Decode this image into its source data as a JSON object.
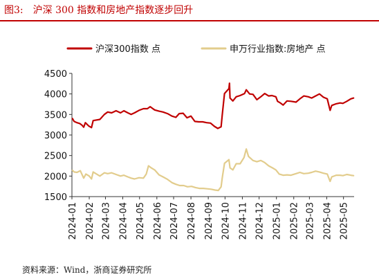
{
  "header": {
    "figure_number": "图3:",
    "title": "沪深 300 指数和房地产指数逐步回升"
  },
  "source": "资料来源：Wind，浙商证券研究所",
  "colors": {
    "series1": "#c00000",
    "series2": "#e2cc8c",
    "title": "#c00000"
  },
  "chart_data": {
    "type": "line",
    "title": "",
    "xlabel": "",
    "ylabel": "",
    "ylim": [
      1500,
      4500
    ],
    "yticks": [
      1500,
      2000,
      2500,
      3000,
      3500,
      4000,
      4500
    ],
    "xlim": [
      "2024-01-01",
      "2025-05-20"
    ],
    "xticks": [
      "2024-01",
      "2024-02",
      "2024-03",
      "2024-04",
      "2024-05",
      "2024-06",
      "2024-07",
      "2024-08",
      "2024-09",
      "2024-10",
      "2024-11",
      "2024-12",
      "2025-01",
      "2025-02",
      "2025-03",
      "2025-04",
      "2025-05"
    ],
    "legend": "top",
    "grid": false,
    "series": [
      {
        "name": "沪深300指数 点",
        "color": "#c00000",
        "points": [
          [
            "2024-01-02",
            3400
          ],
          [
            "2024-01-05",
            3330
          ],
          [
            "2024-01-10",
            3300
          ],
          [
            "2024-01-15",
            3280
          ],
          [
            "2024-01-19",
            3240
          ],
          [
            "2024-01-22",
            3190
          ],
          [
            "2024-01-25",
            3300
          ],
          [
            "2024-01-31",
            3220
          ],
          [
            "2024-02-05",
            3180
          ],
          [
            "2024-02-08",
            3350
          ],
          [
            "2024-02-20",
            3380
          ],
          [
            "2024-02-28",
            3500
          ],
          [
            "2024-03-05",
            3560
          ],
          [
            "2024-03-12",
            3540
          ],
          [
            "2024-03-20",
            3590
          ],
          [
            "2024-03-28",
            3540
          ],
          [
            "2024-04-03",
            3590
          ],
          [
            "2024-04-10",
            3540
          ],
          [
            "2024-04-16",
            3500
          ],
          [
            "2024-04-22",
            3540
          ],
          [
            "2024-04-30",
            3600
          ],
          [
            "2024-05-08",
            3640
          ],
          [
            "2024-05-15",
            3640
          ],
          [
            "2024-05-20",
            3690
          ],
          [
            "2024-05-28",
            3610
          ],
          [
            "2024-06-05",
            3580
          ],
          [
            "2024-06-12",
            3560
          ],
          [
            "2024-06-20",
            3520
          ],
          [
            "2024-06-28",
            3460
          ],
          [
            "2024-07-05",
            3430
          ],
          [
            "2024-07-11",
            3520
          ],
          [
            "2024-07-18",
            3530
          ],
          [
            "2024-07-25",
            3420
          ],
          [
            "2024-08-01",
            3460
          ],
          [
            "2024-08-08",
            3330
          ],
          [
            "2024-08-15",
            3320
          ],
          [
            "2024-08-22",
            3320
          ],
          [
            "2024-08-29",
            3300
          ],
          [
            "2024-09-05",
            3290
          ],
          [
            "2024-09-12",
            3210
          ],
          [
            "2024-09-18",
            3160
          ],
          [
            "2024-09-24",
            3200
          ],
          [
            "2024-09-26",
            3480
          ],
          [
            "2024-09-30",
            4010
          ],
          [
            "2024-10-08",
            4130
          ],
          [
            "2024-10-09",
            4260
          ],
          [
            "2024-10-10",
            3900
          ],
          [
            "2024-10-15",
            3830
          ],
          [
            "2024-10-21",
            3930
          ],
          [
            "2024-10-28",
            3960
          ],
          [
            "2024-11-05",
            4010
          ],
          [
            "2024-11-08",
            4100
          ],
          [
            "2024-11-14",
            4000
          ],
          [
            "2024-11-20",
            3990
          ],
          [
            "2024-11-27",
            3860
          ],
          [
            "2024-12-04",
            3930
          ],
          [
            "2024-12-11",
            4010
          ],
          [
            "2024-12-18",
            3950
          ],
          [
            "2024-12-24",
            3960
          ],
          [
            "2024-12-31",
            3930
          ],
          [
            "2025-01-03",
            3820
          ],
          [
            "2025-01-08",
            3780
          ],
          [
            "2025-01-13",
            3730
          ],
          [
            "2025-01-20",
            3830
          ],
          [
            "2025-01-27",
            3820
          ],
          [
            "2025-02-05",
            3800
          ],
          [
            "2025-02-12",
            3880
          ],
          [
            "2025-02-19",
            3950
          ],
          [
            "2025-02-27",
            3930
          ],
          [
            "2025-03-05",
            3900
          ],
          [
            "2025-03-12",
            3950
          ],
          [
            "2025-03-19",
            4000
          ],
          [
            "2025-03-26",
            3920
          ],
          [
            "2025-04-02",
            3880
          ],
          [
            "2025-04-07",
            3600
          ],
          [
            "2025-04-10",
            3720
          ],
          [
            "2025-04-18",
            3760
          ],
          [
            "2025-04-25",
            3780
          ],
          [
            "2025-04-30",
            3770
          ],
          [
            "2025-05-07",
            3820
          ],
          [
            "2025-05-14",
            3880
          ],
          [
            "2025-05-19",
            3900
          ]
        ]
      },
      {
        "name": "申万行业指数:房地产 点",
        "color": "#e2cc8c",
        "points": [
          [
            "2024-01-02",
            2140
          ],
          [
            "2024-01-05",
            2100
          ],
          [
            "2024-01-10",
            2090
          ],
          [
            "2024-01-16",
            2130
          ],
          [
            "2024-01-22",
            1950
          ],
          [
            "2024-01-26",
            2050
          ],
          [
            "2024-02-01",
            2000
          ],
          [
            "2024-02-05",
            1930
          ],
          [
            "2024-02-08",
            2100
          ],
          [
            "2024-02-20",
            2000
          ],
          [
            "2024-02-28",
            2080
          ],
          [
            "2024-03-05",
            2060
          ],
          [
            "2024-03-12",
            2080
          ],
          [
            "2024-03-20",
            2040
          ],
          [
            "2024-03-28",
            2000
          ],
          [
            "2024-04-03",
            2020
          ],
          [
            "2024-04-10",
            1980
          ],
          [
            "2024-04-16",
            1950
          ],
          [
            "2024-04-22",
            1930
          ],
          [
            "2024-04-30",
            1960
          ],
          [
            "2024-05-08",
            1950
          ],
          [
            "2024-05-13",
            2050
          ],
          [
            "2024-05-17",
            2250
          ],
          [
            "2024-05-22",
            2200
          ],
          [
            "2024-05-28",
            2150
          ],
          [
            "2024-06-05",
            2030
          ],
          [
            "2024-06-12",
            1980
          ],
          [
            "2024-06-20",
            1920
          ],
          [
            "2024-06-28",
            1840
          ],
          [
            "2024-07-05",
            1800
          ],
          [
            "2024-07-12",
            1770
          ],
          [
            "2024-07-19",
            1770
          ],
          [
            "2024-07-26",
            1740
          ],
          [
            "2024-08-02",
            1750
          ],
          [
            "2024-08-09",
            1720
          ],
          [
            "2024-08-16",
            1700
          ],
          [
            "2024-08-23",
            1700
          ],
          [
            "2024-08-30",
            1690
          ],
          [
            "2024-09-06",
            1680
          ],
          [
            "2024-09-13",
            1660
          ],
          [
            "2024-09-19",
            1650
          ],
          [
            "2024-09-24",
            1740
          ],
          [
            "2024-09-26",
            1950
          ],
          [
            "2024-09-30",
            2310
          ],
          [
            "2024-10-08",
            2400
          ],
          [
            "2024-10-10",
            2200
          ],
          [
            "2024-10-15",
            2150
          ],
          [
            "2024-10-21",
            2300
          ],
          [
            "2024-10-28",
            2300
          ],
          [
            "2024-11-04",
            2450
          ],
          [
            "2024-11-08",
            2660
          ],
          [
            "2024-11-12",
            2480
          ],
          [
            "2024-11-20",
            2380
          ],
          [
            "2024-11-27",
            2350
          ],
          [
            "2024-12-04",
            2380
          ],
          [
            "2024-12-11",
            2330
          ],
          [
            "2024-12-18",
            2250
          ],
          [
            "2024-12-25",
            2200
          ],
          [
            "2024-12-31",
            2150
          ],
          [
            "2025-01-06",
            2050
          ],
          [
            "2025-01-13",
            2020
          ],
          [
            "2025-01-20",
            2030
          ],
          [
            "2025-01-27",
            2020
          ],
          [
            "2025-02-05",
            2060
          ],
          [
            "2025-02-12",
            2090
          ],
          [
            "2025-02-19",
            2060
          ],
          [
            "2025-02-27",
            2070
          ],
          [
            "2025-03-05",
            2090
          ],
          [
            "2025-03-12",
            2120
          ],
          [
            "2025-03-19",
            2100
          ],
          [
            "2025-03-26",
            2070
          ],
          [
            "2025-04-02",
            2050
          ],
          [
            "2025-04-07",
            1870
          ],
          [
            "2025-04-10",
            1980
          ],
          [
            "2025-04-18",
            2020
          ],
          [
            "2025-04-25",
            2020
          ],
          [
            "2025-04-30",
            2010
          ],
          [
            "2025-05-07",
            2040
          ],
          [
            "2025-05-14",
            2020
          ],
          [
            "2025-05-19",
            2010
          ]
        ]
      }
    ]
  }
}
